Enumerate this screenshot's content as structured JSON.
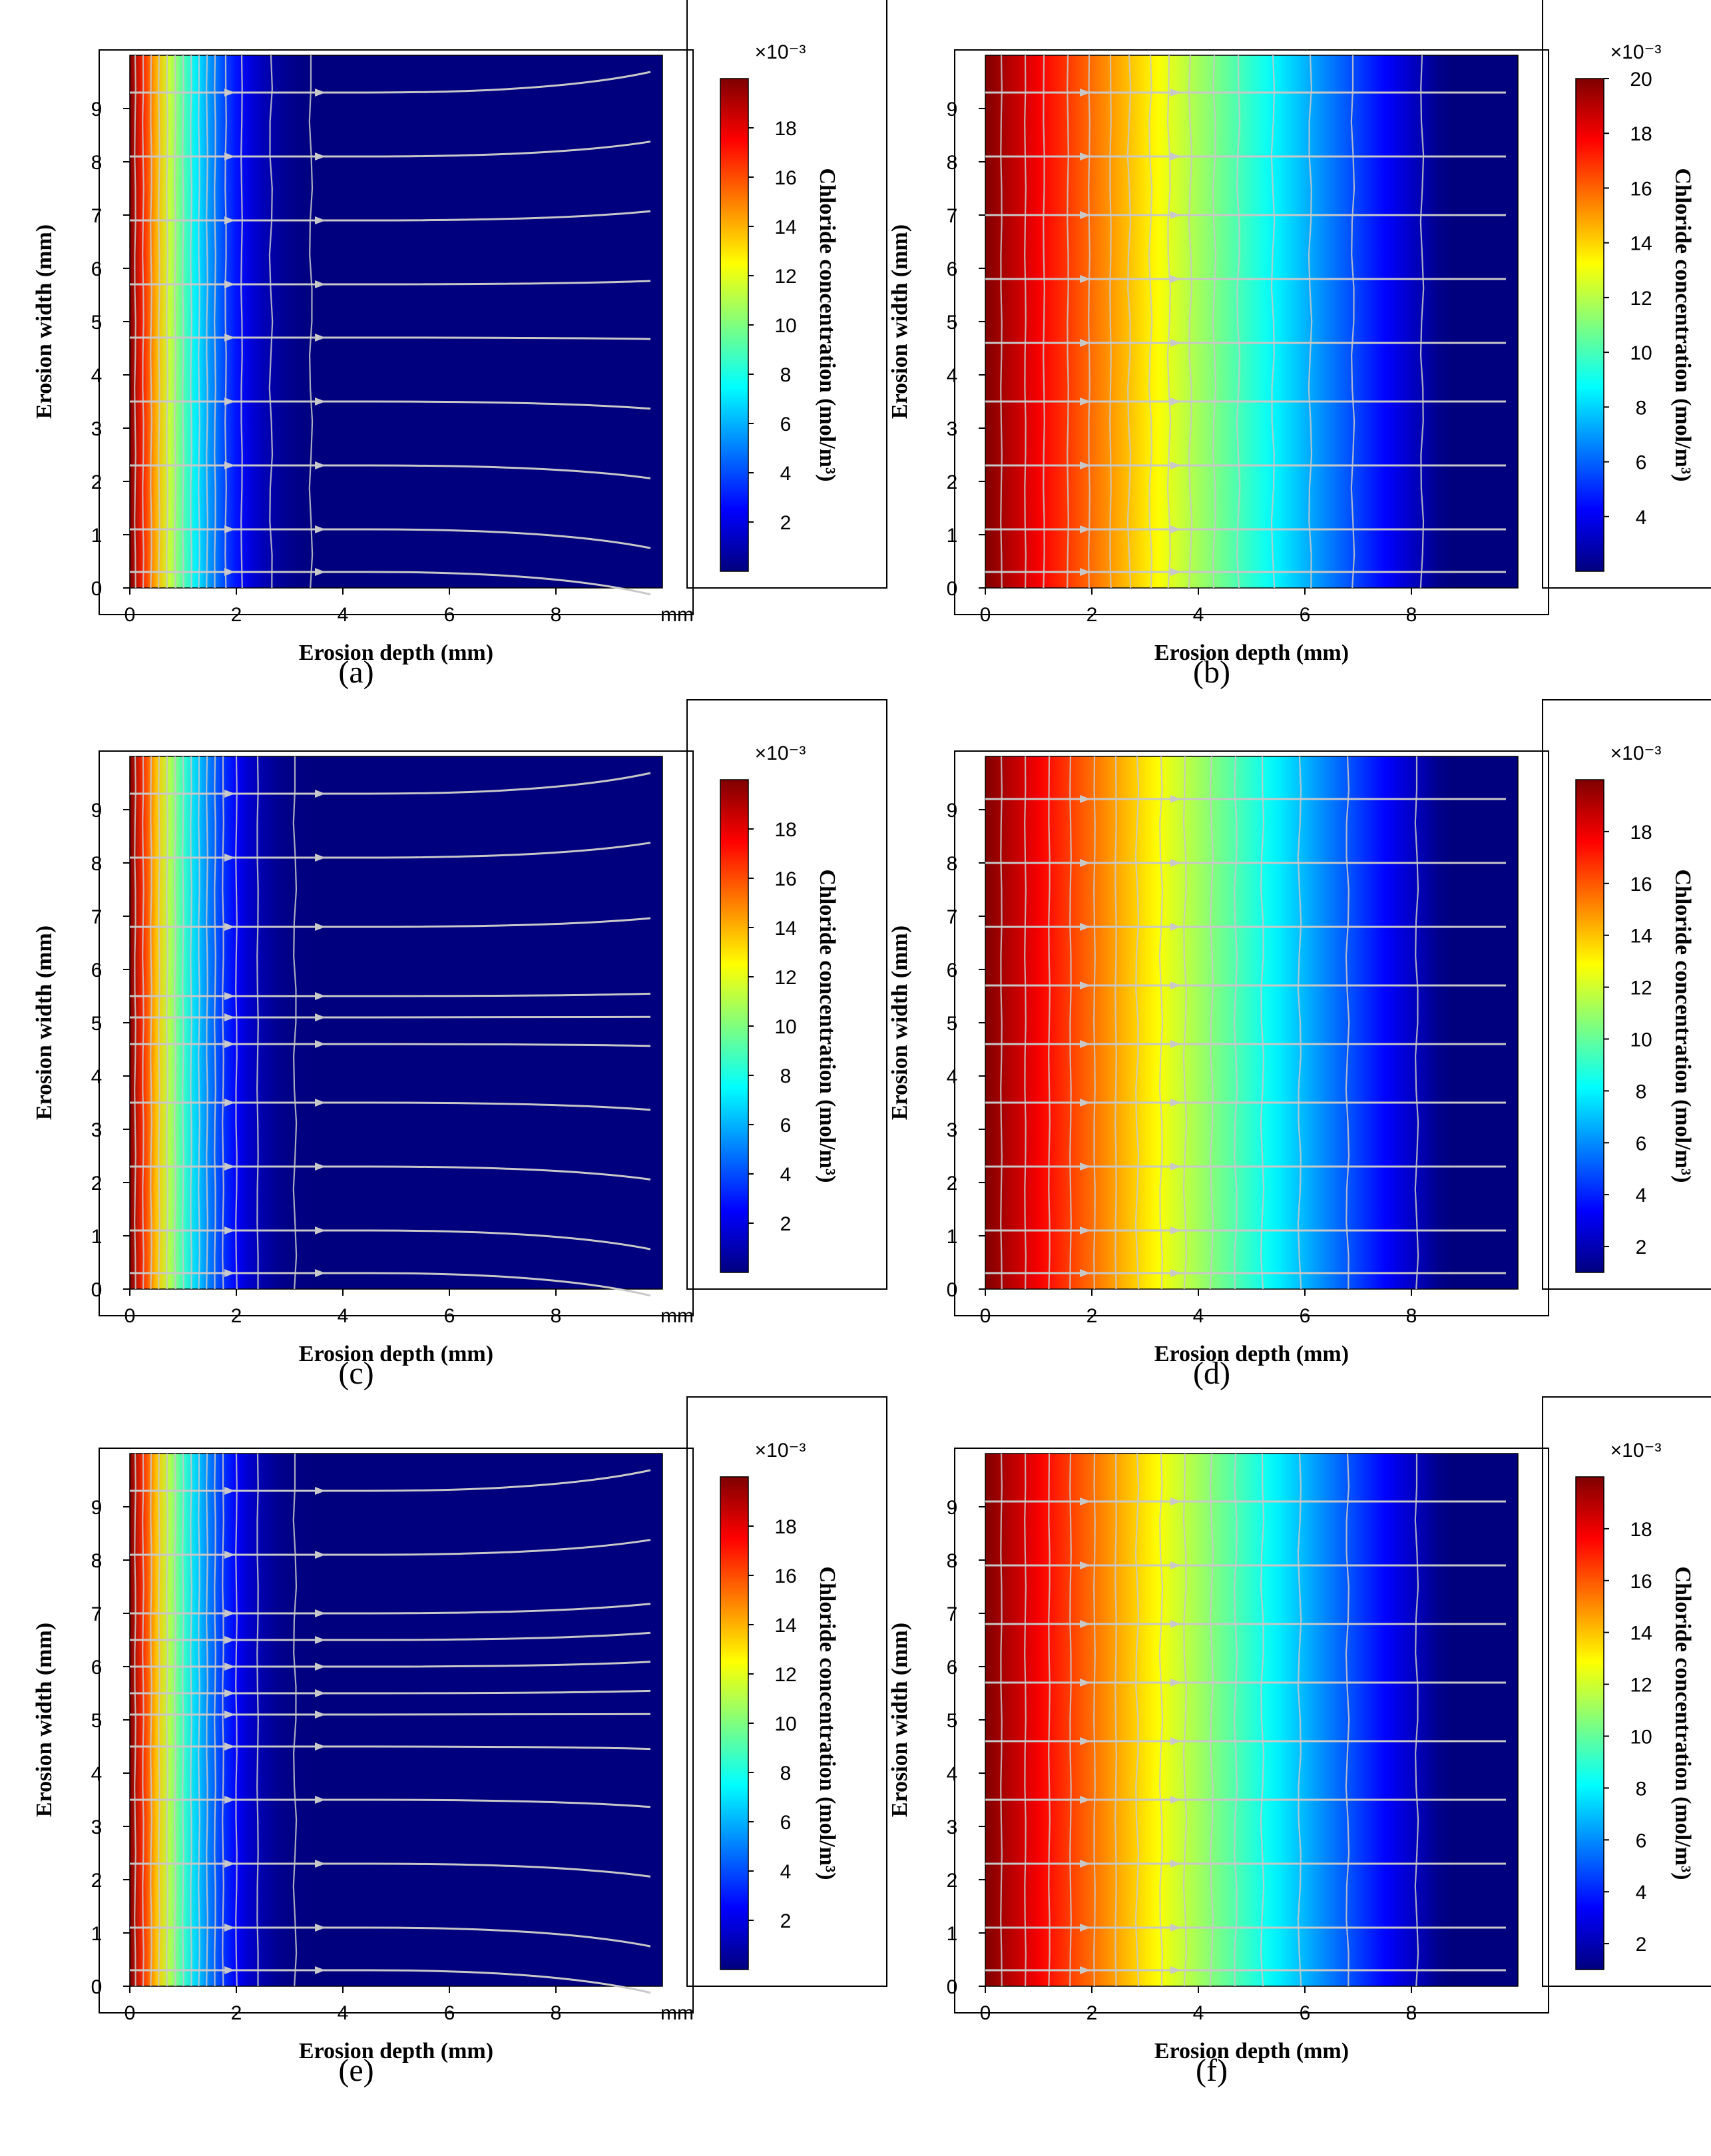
{
  "figure": {
    "colormap": [
      "#00007f",
      "#0000ff",
      "#007fff",
      "#00ffff",
      "#7fff7f",
      "#ffff00",
      "#ff7f00",
      "#ff0000",
      "#7f0000"
    ],
    "streamline_color": "#c8c8c8",
    "frame_color": "#000000"
  },
  "chart_data": [
    {
      "id": "a",
      "caption": "(a)",
      "type": "heatmap",
      "xlabel": "Erosion depth (mm)",
      "ylabel": "Erosion width (mm)",
      "x_ticks": [
        "0",
        "2",
        "4",
        "6",
        "8"
      ],
      "x_unit_tick": "mm",
      "y_ticks": [
        "0",
        "1",
        "2",
        "3",
        "4",
        "5",
        "6",
        "7",
        "8",
        "9"
      ],
      "xlim": [
        0,
        10
      ],
      "ylim": [
        0,
        10
      ],
      "colorbar": {
        "label": "Chloride concentration (mol/m³)",
        "exponent": "×10⁻³",
        "ticks": [
          "2",
          "4",
          "6",
          "8",
          "10",
          "12",
          "14",
          "16",
          "18"
        ],
        "range": [
          0,
          20
        ]
      },
      "profile": {
        "c_max": 20,
        "c_min": 0,
        "decay_depth": 3.6,
        "shape": "fast"
      },
      "contours_x": [
        0.1,
        0.25,
        0.4,
        0.55,
        0.7,
        0.85,
        1.0,
        1.15,
        1.3,
        1.45,
        1.6,
        1.8,
        2.1,
        2.65,
        3.4
      ],
      "streamlines_y": [
        0.3,
        1.1,
        2.3,
        3.5,
        4.7,
        5.7,
        6.9,
        8.1,
        9.3
      ]
    },
    {
      "id": "b",
      "caption": "(b)",
      "type": "heatmap",
      "xlabel": "Erosion depth (mm)",
      "ylabel": "Erosion width (mm)",
      "x_ticks": [
        "0",
        "2",
        "4",
        "6",
        "8"
      ],
      "y_ticks": [
        "0",
        "1",
        "2",
        "3",
        "4",
        "5",
        "6",
        "7",
        "8",
        "9"
      ],
      "xlim": [
        0,
        10
      ],
      "ylim": [
        0,
        10
      ],
      "colorbar": {
        "label": "Chloride concentration (mol/m³)",
        "exponent": "×10⁻³",
        "ticks": [
          "4",
          "6",
          "8",
          "10",
          "12",
          "14",
          "16",
          "18",
          "20"
        ],
        "range": [
          2,
          20
        ]
      },
      "profile": {
        "c_max": 20,
        "c_min": 2,
        "decay_depth": 8.6,
        "shape": "slow"
      },
      "contours_x": [
        0.3,
        0.75,
        1.1,
        1.55,
        1.95,
        2.35,
        2.7,
        3.1,
        3.45,
        3.85,
        4.3,
        4.75,
        5.4,
        6.1,
        6.9,
        8.2
      ],
      "streamlines_y": [
        0.3,
        1.1,
        2.3,
        3.5,
        4.6,
        5.8,
        7.0,
        8.1,
        9.3
      ]
    },
    {
      "id": "c",
      "caption": "(c)",
      "type": "heatmap",
      "xlabel": "Erosion depth (mm)",
      "ylabel": "Erosion width (mm)",
      "x_ticks": [
        "0",
        "2",
        "4",
        "6",
        "8"
      ],
      "x_unit_tick": "mm",
      "y_ticks": [
        "0",
        "1",
        "2",
        "3",
        "4",
        "5",
        "6",
        "7",
        "8",
        "9"
      ],
      "xlim": [
        0,
        10
      ],
      "ylim": [
        0,
        10
      ],
      "colorbar": {
        "label": "Chloride concentration (mol/m³)",
        "exponent": "×10⁻³",
        "ticks": [
          "2",
          "4",
          "6",
          "8",
          "10",
          "12",
          "14",
          "16",
          "18"
        ],
        "range": [
          0,
          20
        ]
      },
      "profile": {
        "c_max": 20,
        "c_min": 0,
        "decay_depth": 3.4,
        "shape": "fast"
      },
      "contours_x": [
        0.1,
        0.25,
        0.4,
        0.55,
        0.7,
        0.85,
        1.0,
        1.15,
        1.3,
        1.45,
        1.6,
        1.75,
        2.0,
        2.4,
        3.1
      ],
      "streamlines_y": [
        0.3,
        1.1,
        2.3,
        3.5,
        4.6,
        5.1,
        5.5,
        6.8,
        8.1,
        9.3
      ]
    },
    {
      "id": "d",
      "caption": "(d)",
      "type": "heatmap",
      "xlabel": "Erosion depth (mm)",
      "ylabel": "Erosion width (mm)",
      "x_ticks": [
        "0",
        "2",
        "4",
        "6",
        "8"
      ],
      "y_ticks": [
        "0",
        "1",
        "2",
        "3",
        "4",
        "5",
        "6",
        "7",
        "8",
        "9"
      ],
      "xlim": [
        0,
        10
      ],
      "ylim": [
        0,
        10
      ],
      "colorbar": {
        "label": "Chloride concentration (mol/m³)",
        "exponent": "×10⁻³",
        "ticks": [
          "2",
          "4",
          "6",
          "8",
          "10",
          "12",
          "14",
          "16",
          "18"
        ],
        "range": [
          1,
          20
        ]
      },
      "profile": {
        "c_max": 20,
        "c_min": 1,
        "decay_depth": 8.6,
        "shape": "slow"
      },
      "contours_x": [
        0.3,
        0.75,
        1.2,
        1.6,
        2.05,
        2.45,
        2.85,
        3.3,
        3.75,
        4.25,
        4.7,
        5.2,
        5.9,
        6.8,
        8.1
      ],
      "streamlines_y": [
        0.3,
        1.1,
        2.3,
        3.5,
        4.6,
        5.7,
        6.8,
        8.0,
        9.2
      ]
    },
    {
      "id": "e",
      "caption": "(e)",
      "type": "heatmap",
      "xlabel": "Erosion depth (mm)",
      "ylabel": "Erosion width (mm)",
      "x_ticks": [
        "0",
        "2",
        "4",
        "6",
        "8"
      ],
      "x_unit_tick": "mm",
      "y_ticks": [
        "0",
        "1",
        "2",
        "3",
        "4",
        "5",
        "6",
        "7",
        "8",
        "9"
      ],
      "xlim": [
        0,
        10
      ],
      "ylim": [
        0,
        10
      ],
      "colorbar": {
        "label": "Chloride concentration (mol/m³)",
        "exponent": "×10⁻³",
        "ticks": [
          "2",
          "4",
          "6",
          "8",
          "10",
          "12",
          "14",
          "16",
          "18"
        ],
        "range": [
          0,
          20
        ]
      },
      "profile": {
        "c_max": 20,
        "c_min": 0,
        "decay_depth": 3.4,
        "shape": "fast"
      },
      "contours_x": [
        0.1,
        0.25,
        0.4,
        0.55,
        0.7,
        0.85,
        1.0,
        1.15,
        1.3,
        1.45,
        1.6,
        1.75,
        2.0,
        2.4,
        3.1
      ],
      "streamlines_y": [
        0.3,
        1.1,
        2.3,
        3.5,
        4.5,
        5.1,
        5.5,
        6.0,
        6.5,
        7.0,
        8.1,
        9.3
      ]
    },
    {
      "id": "f",
      "caption": "(f)",
      "type": "heatmap",
      "xlabel": "Erosion depth (mm)",
      "ylabel": "Erosion width (mm)",
      "x_ticks": [
        "0",
        "2",
        "4",
        "6",
        "8"
      ],
      "y_ticks": [
        "0",
        "1",
        "2",
        "3",
        "4",
        "5",
        "6",
        "7",
        "8",
        "9"
      ],
      "xlim": [
        0,
        10
      ],
      "ylim": [
        0,
        10
      ],
      "colorbar": {
        "label": "Chloride concentration (mol/m³)",
        "exponent": "×10⁻³",
        "ticks": [
          "2",
          "4",
          "6",
          "8",
          "10",
          "12",
          "14",
          "16",
          "18"
        ],
        "range": [
          1,
          20
        ]
      },
      "profile": {
        "c_max": 20,
        "c_min": 1,
        "decay_depth": 8.6,
        "shape": "slow"
      },
      "contours_x": [
        0.3,
        0.75,
        1.2,
        1.6,
        2.05,
        2.45,
        2.85,
        3.3,
        3.75,
        4.25,
        4.7,
        5.2,
        5.9,
        6.8,
        8.1
      ],
      "streamlines_y": [
        0.3,
        1.1,
        2.3,
        3.5,
        4.6,
        5.7,
        6.8,
        7.9,
        9.1
      ]
    }
  ]
}
